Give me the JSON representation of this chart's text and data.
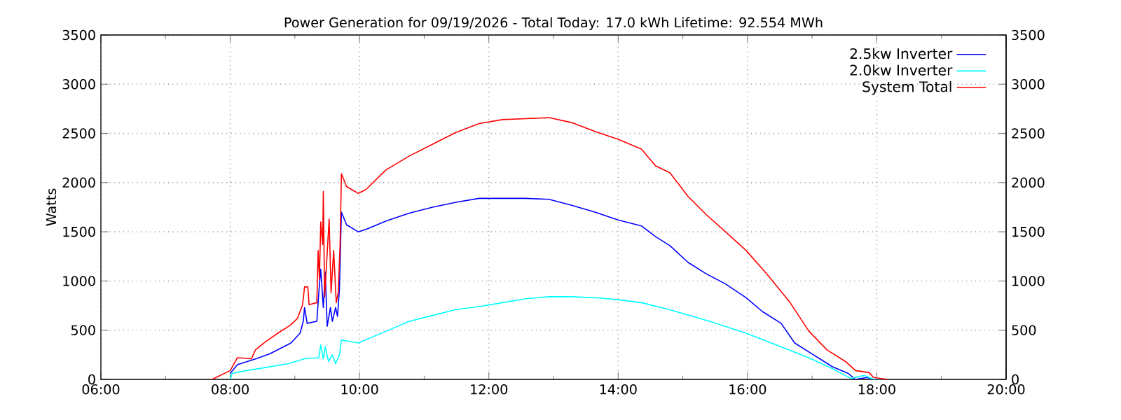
{
  "chart_data": {
    "type": "line",
    "title": "Power Generation for 09/19/2026 - Total Today: 17.0 kWh   Lifetime: 92.554 MWh",
    "ylabel": "Watts",
    "xlim": [
      6,
      20
    ],
    "xticks": [
      {
        "value": 6,
        "label": "06:00"
      },
      {
        "value": 8,
        "label": "08:00"
      },
      {
        "value": 10,
        "label": "10:00"
      },
      {
        "value": 12,
        "label": "12:00"
      },
      {
        "value": 14,
        "label": "14:00"
      },
      {
        "value": 16,
        "label": "16:00"
      },
      {
        "value": 18,
        "label": "18:00"
      },
      {
        "value": 20,
        "label": "20:00"
      }
    ],
    "ylim": [
      0,
      3500
    ],
    "yticks": [
      0,
      500,
      1000,
      1500,
      2000,
      2500,
      3000,
      3500
    ],
    "y2lim": [
      0,
      3500
    ],
    "y2ticks": [
      0,
      500,
      1000,
      1500,
      2000,
      2500,
      3000,
      3500
    ],
    "grid": true,
    "legend": "top right",
    "line_style": "solid",
    "series": [
      {
        "name": "2.5kw Inverter",
        "color": "#0000ff",
        "x": [
          8.0,
          8.11,
          8.4,
          8.61,
          8.94,
          9.08,
          9.13,
          9.15,
          9.19,
          9.34,
          9.37,
          9.4,
          9.44,
          9.47,
          9.5,
          9.55,
          9.58,
          9.63,
          9.66,
          9.69,
          9.72,
          9.8,
          9.98,
          10.12,
          10.41,
          10.77,
          11.13,
          11.49,
          11.85,
          12.21,
          12.57,
          12.93,
          13.28,
          13.64,
          14.0,
          14.36,
          14.58,
          14.8,
          15.08,
          15.37,
          15.66,
          15.98,
          16.23,
          16.52,
          16.73,
          17.02,
          17.31,
          17.56,
          17.67,
          17.85,
          17.95,
          18.13
        ],
        "values": [
          60,
          150,
          210,
          260,
          370,
          470,
          590,
          730,
          570,
          590,
          880,
          1120,
          730,
          1090,
          540,
          730,
          590,
          730,
          640,
          930,
          1700,
          1570,
          1500,
          1530,
          1610,
          1690,
          1750,
          1800,
          1840,
          1840,
          1840,
          1830,
          1770,
          1700,
          1620,
          1560,
          1450,
          1360,
          1190,
          1070,
          970,
          830,
          690,
          570,
          370,
          250,
          130,
          60,
          0,
          20,
          0,
          0
        ]
      },
      {
        "name": "2.0kw Inverter",
        "color": "#00ffff",
        "x": [
          8.0,
          8.03,
          8.25,
          8.54,
          8.9,
          9.15,
          9.37,
          9.4,
          9.44,
          9.47,
          9.52,
          9.58,
          9.63,
          9.69,
          9.72,
          9.98,
          10.41,
          10.77,
          11.13,
          11.49,
          11.85,
          12.21,
          12.57,
          12.93,
          13.28,
          13.64,
          14.0,
          14.36,
          14.79,
          15.37,
          15.98,
          16.52,
          16.95,
          17.31,
          17.6,
          17.81,
          17.88,
          17.95,
          18.13
        ],
        "values": [
          0,
          60,
          90,
          120,
          160,
          210,
          220,
          350,
          210,
          330,
          180,
          250,
          160,
          250,
          400,
          370,
          490,
          590,
          650,
          710,
          740,
          780,
          820,
          840,
          840,
          830,
          810,
          780,
          710,
          600,
          470,
          330,
          220,
          110,
          10,
          40,
          20,
          0,
          0
        ]
      },
      {
        "name": "System Total",
        "color": "#ff0000",
        "x": [
          7.72,
          8.0,
          8.11,
          8.33,
          8.39,
          8.54,
          8.76,
          8.93,
          9.04,
          9.12,
          9.15,
          9.2,
          9.22,
          9.34,
          9.36,
          9.38,
          9.4,
          9.43,
          9.44,
          9.46,
          9.49,
          9.53,
          9.56,
          9.6,
          9.64,
          9.67,
          9.7,
          9.72,
          9.8,
          9.98,
          10.1,
          10.41,
          10.77,
          11.13,
          11.49,
          11.85,
          12.21,
          12.57,
          12.93,
          13.28,
          13.64,
          14.0,
          14.36,
          14.58,
          14.8,
          15.08,
          15.37,
          15.66,
          15.98,
          16.3,
          16.66,
          16.95,
          17.23,
          17.52,
          17.67,
          17.88,
          17.95,
          18.17
        ],
        "values": [
          0,
          90,
          220,
          210,
          300,
          380,
          480,
          550,
          620,
          760,
          940,
          940,
          760,
          780,
          1310,
          1020,
          1600,
          1370,
          1910,
          840,
          1170,
          1630,
          880,
          1310,
          780,
          880,
          1380,
          2090,
          1960,
          1890,
          1930,
          2130,
          2270,
          2390,
          2510,
          2600,
          2640,
          2650,
          2660,
          2610,
          2520,
          2440,
          2340,
          2170,
          2100,
          1860,
          1670,
          1500,
          1310,
          1070,
          780,
          490,
          300,
          180,
          90,
          70,
          20,
          0
        ]
      }
    ]
  }
}
